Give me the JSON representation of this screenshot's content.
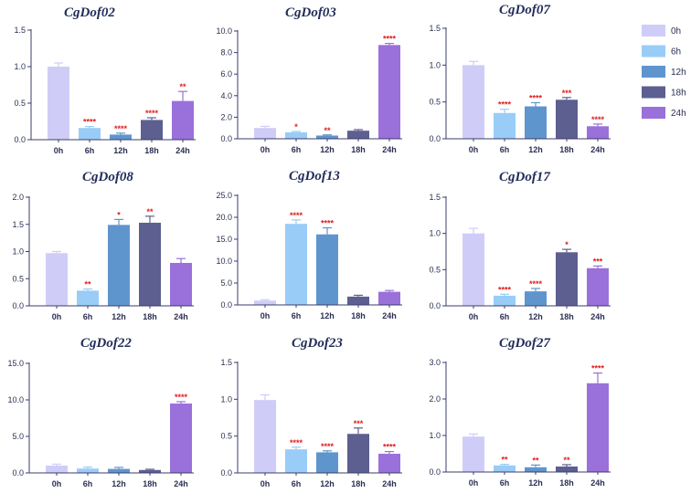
{
  "colors": {
    "0h": "#cfcdf7",
    "6h": "#99ccf7",
    "12h": "#5f95cd",
    "18h": "#5d5f90",
    "24h": "#9a70da",
    "axis": "#3a3d6b",
    "significance": "#e01b1b"
  },
  "legend": {
    "items": [
      {
        "label": "0h",
        "color": "#cfcdf7"
      },
      {
        "label": "6h",
        "color": "#99ccf7"
      },
      {
        "label": "12h",
        "color": "#5f95cd"
      },
      {
        "label": "18h",
        "color": "#5d5f90"
      },
      {
        "label": "24h",
        "color": "#9a70da"
      }
    ]
  },
  "chart_data": [
    {
      "type": "bar",
      "title": "CgDof02",
      "categories": [
        "0h",
        "6h",
        "12h",
        "18h",
        "24h"
      ],
      "values": [
        1.0,
        0.16,
        0.07,
        0.27,
        0.53
      ],
      "errors": [
        0.05,
        0.02,
        0.02,
        0.03,
        0.13
      ],
      "significance": [
        "",
        "****",
        "****",
        "****",
        "**"
      ],
      "ylim": [
        0,
        1.5
      ],
      "yticks": [
        "0.0",
        "0.5",
        "1.0",
        "1.5"
      ]
    },
    {
      "type": "bar",
      "title": "CgDof03",
      "categories": [
        "0h",
        "6h",
        "12h",
        "18h",
        "24h"
      ],
      "values": [
        1.0,
        0.6,
        0.3,
        0.75,
        8.7
      ],
      "errors": [
        0.15,
        0.08,
        0.06,
        0.1,
        0.15
      ],
      "significance": [
        "",
        "*",
        "**",
        "",
        "****"
      ],
      "ylim": [
        0,
        10
      ],
      "yticks": [
        "0.0",
        "2.0",
        "4.0",
        "6.0",
        "8.0",
        "10.0"
      ]
    },
    {
      "type": "bar",
      "title": "CgDof07",
      "categories": [
        "0h",
        "6h",
        "12h",
        "18h",
        "24h"
      ],
      "values": [
        1.0,
        0.35,
        0.44,
        0.53,
        0.17
      ],
      "errors": [
        0.05,
        0.05,
        0.05,
        0.03,
        0.03
      ],
      "significance": [
        "",
        "****",
        "****",
        "***",
        "****"
      ],
      "ylim": [
        0,
        1.5
      ],
      "yticks": [
        "0.0",
        "0.5",
        "1.0",
        "1.5"
      ]
    },
    {
      "type": "bar",
      "title": "CgDof08",
      "categories": [
        "0h",
        "6h",
        "12h",
        "18h",
        "24h"
      ],
      "values": [
        0.97,
        0.28,
        1.49,
        1.53,
        0.79
      ],
      "errors": [
        0.03,
        0.03,
        0.1,
        0.12,
        0.08
      ],
      "significance": [
        "",
        "**",
        "*",
        "**",
        ""
      ],
      "ylim": [
        0,
        2.0
      ],
      "yticks": [
        "0.0",
        "0.5",
        "1.0",
        "1.5",
        "2.0"
      ]
    },
    {
      "type": "bar",
      "title": "CgDof13",
      "categories": [
        "0h",
        "6h",
        "12h",
        "18h",
        "24h"
      ],
      "values": [
        1.0,
        18.5,
        16.1,
        1.9,
        3.0
      ],
      "errors": [
        0.2,
        0.9,
        1.5,
        0.3,
        0.3
      ],
      "significance": [
        "",
        "****",
        "****",
        "",
        ""
      ],
      "ylim": [
        0,
        25
      ],
      "yticks": [
        "0.0",
        "5.0",
        "10.0",
        "15.0",
        "20.0",
        "25.0"
      ]
    },
    {
      "type": "bar",
      "title": "CgDof17",
      "categories": [
        "0h",
        "6h",
        "12h",
        "18h",
        "24h"
      ],
      "values": [
        1.0,
        0.14,
        0.2,
        0.74,
        0.52
      ],
      "errors": [
        0.07,
        0.02,
        0.04,
        0.04,
        0.03
      ],
      "significance": [
        "",
        "****",
        "****",
        "*",
        "***"
      ],
      "ylim": [
        0,
        1.5
      ],
      "yticks": [
        "0.0",
        "0.5",
        "1.0",
        "1.5"
      ]
    },
    {
      "type": "bar",
      "title": "CgDof22",
      "categories": [
        "0h",
        "6h",
        "12h",
        "18h",
        "24h"
      ],
      "values": [
        1.0,
        0.6,
        0.55,
        0.4,
        9.5
      ],
      "errors": [
        0.2,
        0.2,
        0.2,
        0.1,
        0.25
      ],
      "significance": [
        "",
        "",
        "",
        "",
        "****"
      ],
      "ylim": [
        0,
        15
      ],
      "yticks": [
        "0.0",
        "5.0",
        "10.0",
        "15.0"
      ]
    },
    {
      "type": "bar",
      "title": "CgDof23",
      "categories": [
        "0h",
        "6h",
        "12h",
        "18h",
        "24h"
      ],
      "values": [
        0.99,
        0.32,
        0.28,
        0.53,
        0.26
      ],
      "errors": [
        0.07,
        0.03,
        0.02,
        0.08,
        0.03
      ],
      "significance": [
        "",
        "****",
        "****",
        "***",
        "****"
      ],
      "ylim": [
        0,
        1.5
      ],
      "yticks": [
        "0.0",
        "0.5",
        "1.0",
        "1.5"
      ]
    },
    {
      "type": "bar",
      "title": "CgDof27",
      "categories": [
        "0h",
        "6h",
        "12h",
        "18h",
        "24h"
      ],
      "values": [
        0.97,
        0.18,
        0.13,
        0.15,
        2.43
      ],
      "errors": [
        0.07,
        0.03,
        0.06,
        0.05,
        0.28
      ],
      "significance": [
        "",
        "**",
        "**",
        "**",
        "****"
      ],
      "ylim": [
        0,
        3.0
      ],
      "yticks": [
        "0.0",
        "1.0",
        "2.0",
        "3.0"
      ]
    }
  ]
}
